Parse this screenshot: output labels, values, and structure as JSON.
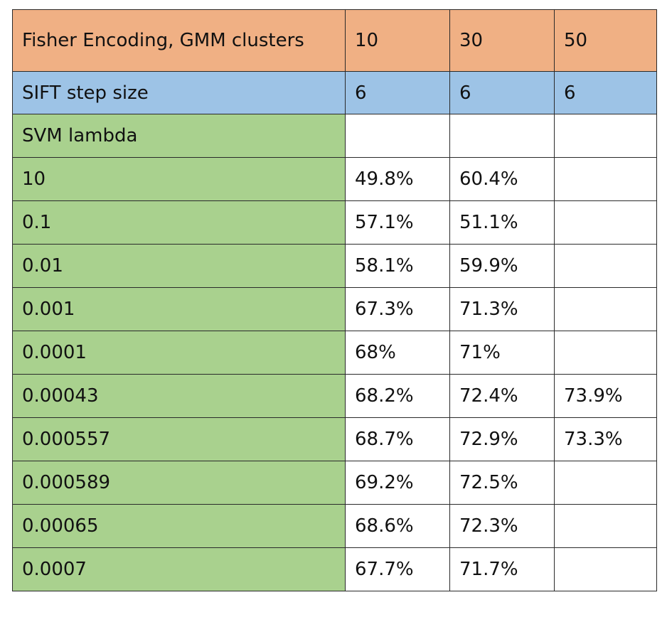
{
  "table": {
    "header": {
      "label": "Fisher Encoding, GMM clusters",
      "values": [
        "10",
        "30",
        "50"
      ]
    },
    "sift": {
      "label": "SIFT step size",
      "values": [
        "6",
        "6",
        "6"
      ]
    },
    "svm_label": "SVM lambda",
    "rows": [
      {
        "lambda": "10",
        "values": [
          "49.8%",
          "60.4%",
          ""
        ]
      },
      {
        "lambda": "0.1",
        "values": [
          "57.1%",
          "51.1%",
          ""
        ]
      },
      {
        "lambda": "0.01",
        "values": [
          "58.1%",
          "59.9%",
          ""
        ]
      },
      {
        "lambda": "0.001",
        "values": [
          "67.3%",
          "71.3%",
          ""
        ]
      },
      {
        "lambda": "0.0001",
        "values": [
          "68%",
          "71%",
          ""
        ]
      },
      {
        "lambda": "0.00043",
        "values": [
          "68.2%",
          "72.4%",
          "73.9%"
        ]
      },
      {
        "lambda": "0.000557",
        "values": [
          "68.7%",
          "72.9%",
          "73.3%"
        ]
      },
      {
        "lambda": "0.000589",
        "values": [
          "69.2%",
          "72.5%",
          ""
        ]
      },
      {
        "lambda": "0.00065",
        "values": [
          "68.6%",
          "72.3%",
          ""
        ]
      },
      {
        "lambda": "0.0007",
        "values": [
          "67.7%",
          "71.7%",
          ""
        ]
      }
    ]
  },
  "colors": {
    "header_bg": "#f0b084",
    "sift_bg": "#9dc3e6",
    "lambda_bg": "#a9d18e",
    "cell_bg": "#ffffff",
    "border": "#2a2a2a"
  }
}
